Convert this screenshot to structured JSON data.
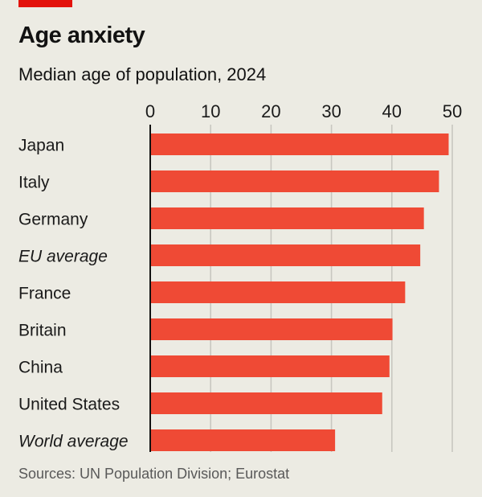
{
  "header": {
    "title": "Age anxiety",
    "subtitle": "Median age of population, 2024"
  },
  "footer": {
    "source": "Sources: UN Population Division; Eurostat"
  },
  "colors": {
    "background": "#ecebe3",
    "bar": "#ef4a35",
    "brand_red": "#e3120b",
    "gridline": "#c8c7c0",
    "axis": "#121212"
  },
  "chart_data": {
    "type": "bar",
    "orientation": "horizontal",
    "title": "Age anxiety",
    "subtitle": "Median age of population, 2024",
    "xlabel": "",
    "ylabel": "",
    "xlim": [
      0,
      50
    ],
    "x_ticks": [
      0,
      10,
      20,
      30,
      40,
      50
    ],
    "x_tick_labels": [
      "0",
      "10",
      "20",
      "30",
      "40",
      "50"
    ],
    "x_axis_position": "top",
    "grid": true,
    "categories": [
      "Japan",
      "Italy",
      "Germany",
      "EU average",
      "France",
      "Britain",
      "China",
      "United States",
      "World average"
    ],
    "italic_categories": [
      "EU average",
      "World average"
    ],
    "values": [
      49.4,
      47.8,
      45.3,
      44.7,
      42.2,
      40.1,
      39.6,
      38.4,
      30.6
    ],
    "units": "years",
    "source": "Sources: UN Population Division; Eurostat"
  }
}
